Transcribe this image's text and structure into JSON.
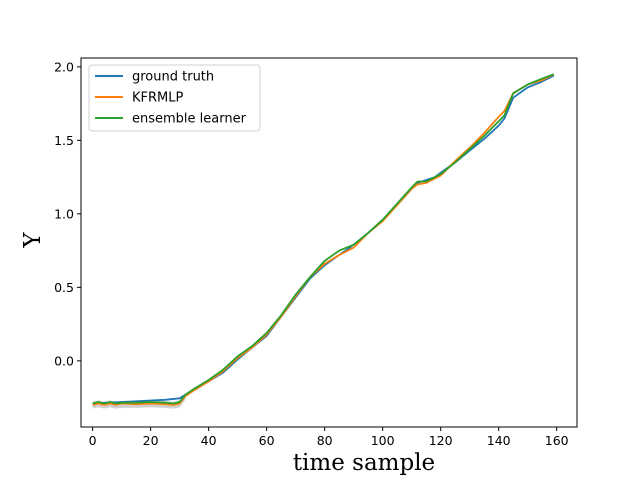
{
  "chart_data": {
    "type": "line",
    "title": "",
    "xlabel": "time sample",
    "ylabel": "Y",
    "xlim": [
      -4,
      167
    ],
    "ylim": [
      -0.45,
      2.06
    ],
    "xticks": [
      0,
      20,
      40,
      60,
      80,
      100,
      120,
      140,
      160
    ],
    "yticks": [
      0.0,
      0.5,
      1.0,
      1.5,
      2.0
    ],
    "ytick_labels": [
      "0.0",
      "0.5",
      "1.0",
      "1.5",
      "2.0"
    ],
    "grid": false,
    "legend": "top-left",
    "band": {
      "color": "#b0b0b0",
      "opacity": 0.6
    },
    "series": [
      {
        "name": "ground truth",
        "color": "#1f77b4",
        "x": [
          0,
          5,
          10,
          15,
          20,
          25,
          30,
          32,
          35,
          40,
          45,
          50,
          55,
          60,
          65,
          70,
          75,
          80,
          85,
          90,
          95,
          100,
          105,
          110,
          112,
          115,
          118,
          120,
          125,
          130,
          135,
          140,
          142,
          145,
          150,
          155,
          159
        ],
        "y": [
          -0.29,
          -0.285,
          -0.28,
          -0.275,
          -0.27,
          -0.265,
          -0.255,
          -0.23,
          -0.2,
          -0.14,
          -0.08,
          0.01,
          0.09,
          0.17,
          0.3,
          0.43,
          0.56,
          0.65,
          0.72,
          0.79,
          0.87,
          0.96,
          1.06,
          1.17,
          1.21,
          1.23,
          1.25,
          1.28,
          1.35,
          1.43,
          1.51,
          1.6,
          1.65,
          1.79,
          1.86,
          1.9,
          1.94
        ]
      },
      {
        "name": "KFRMLP",
        "color": "#ff7f0e",
        "x": [
          0,
          2,
          4,
          6,
          8,
          10,
          15,
          20,
          25,
          28,
          30,
          32,
          35,
          40,
          45,
          50,
          55,
          60,
          65,
          70,
          75,
          80,
          85,
          90,
          95,
          100,
          105,
          110,
          112,
          115,
          118,
          120,
          125,
          130,
          135,
          140,
          142,
          145,
          150,
          155,
          159
        ],
        "y": [
          -0.3,
          -0.29,
          -0.3,
          -0.29,
          -0.3,
          -0.29,
          -0.295,
          -0.29,
          -0.295,
          -0.3,
          -0.29,
          -0.24,
          -0.2,
          -0.14,
          -0.07,
          0.02,
          0.09,
          0.18,
          0.3,
          0.44,
          0.57,
          0.66,
          0.72,
          0.77,
          0.87,
          0.95,
          1.06,
          1.17,
          1.2,
          1.21,
          1.24,
          1.26,
          1.36,
          1.45,
          1.55,
          1.66,
          1.7,
          1.82,
          1.88,
          1.91,
          1.95
        ]
      },
      {
        "name": "ensemble learner",
        "color": "#2ca02c",
        "x": [
          0,
          2,
          4,
          6,
          8,
          10,
          15,
          20,
          25,
          28,
          30,
          32,
          35,
          40,
          45,
          50,
          55,
          60,
          65,
          70,
          75,
          80,
          85,
          90,
          95,
          100,
          105,
          110,
          112,
          115,
          118,
          120,
          125,
          130,
          135,
          140,
          142,
          145,
          150,
          155,
          159
        ],
        "y": [
          -0.29,
          -0.28,
          -0.29,
          -0.28,
          -0.29,
          -0.285,
          -0.285,
          -0.28,
          -0.285,
          -0.29,
          -0.28,
          -0.23,
          -0.19,
          -0.13,
          -0.06,
          0.03,
          0.1,
          0.19,
          0.31,
          0.45,
          0.57,
          0.68,
          0.75,
          0.79,
          0.87,
          0.96,
          1.07,
          1.18,
          1.22,
          1.22,
          1.25,
          1.27,
          1.35,
          1.44,
          1.53,
          1.63,
          1.67,
          1.82,
          1.88,
          1.92,
          1.95
        ]
      }
    ]
  }
}
